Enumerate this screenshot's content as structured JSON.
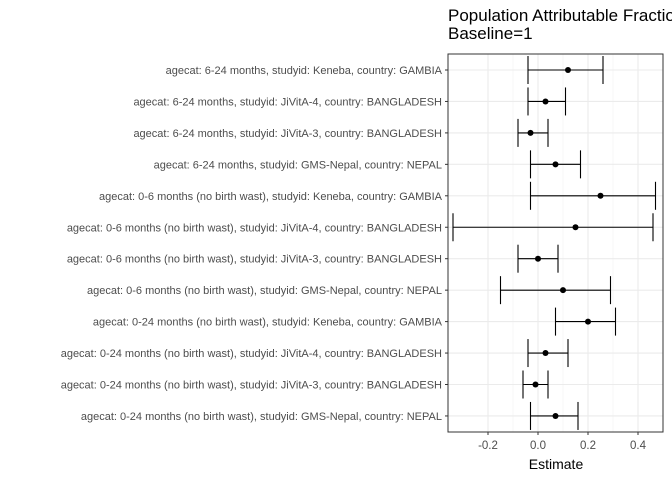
{
  "chart_data": {
    "type": "forest",
    "title": "Population Attributable Fraction",
    "subtitle": "Baseline=1",
    "xlabel": "Estimate",
    "ylabel": "",
    "xlim": [
      -0.36,
      0.5
    ],
    "x_ticks": [
      -0.2,
      0.0,
      0.2,
      0.4
    ],
    "x_tick_labels": [
      "-0.2",
      "0.0",
      "0.2",
      "0.4"
    ],
    "grid": true,
    "rows": [
      {
        "label": "agecat: 6-24 months, studyid: Keneba, country: GAMBIA",
        "estimate": 0.12,
        "lower": -0.04,
        "upper": 0.26
      },
      {
        "label": "agecat: 6-24 months, studyid: JiVitA-4, country: BANGLADESH",
        "estimate": 0.03,
        "lower": -0.04,
        "upper": 0.11
      },
      {
        "label": "agecat: 6-24 months, studyid: JiVitA-3, country: BANGLADESH",
        "estimate": -0.03,
        "lower": -0.08,
        "upper": 0.04
      },
      {
        "label": "agecat: 6-24 months, studyid: GMS-Nepal, country: NEPAL",
        "estimate": 0.07,
        "lower": -0.03,
        "upper": 0.17
      },
      {
        "label": "agecat: 0-6 months (no birth wast), studyid: Keneba, country: GAMBIA",
        "estimate": 0.25,
        "lower": -0.03,
        "upper": 0.47
      },
      {
        "label": "agecat: 0-6 months (no birth wast), studyid: JiVitA-4, country: BANGLADESH",
        "estimate": 0.15,
        "lower": -0.34,
        "upper": 0.46
      },
      {
        "label": "agecat: 0-6 months (no birth wast), studyid: JiVitA-3, country: BANGLADESH",
        "estimate": 0.0,
        "lower": -0.08,
        "upper": 0.08
      },
      {
        "label": "agecat: 0-6 months (no birth wast), studyid: GMS-Nepal, country: NEPAL",
        "estimate": 0.1,
        "lower": -0.15,
        "upper": 0.29
      },
      {
        "label": "agecat: 0-24 months (no birth wast), studyid: Keneba, country: GAMBIA",
        "estimate": 0.2,
        "lower": 0.07,
        "upper": 0.31
      },
      {
        "label": "agecat: 0-24 months (no birth wast), studyid: JiVitA-4, country: BANGLADESH",
        "estimate": 0.03,
        "lower": -0.04,
        "upper": 0.12
      },
      {
        "label": "agecat: 0-24 months (no birth wast), studyid: JiVitA-3, country: BANGLADESH",
        "estimate": -0.01,
        "lower": -0.06,
        "upper": 0.04
      },
      {
        "label": "agecat: 0-24 months (no birth wast), studyid: GMS-Nepal, country: NEPAL",
        "estimate": 0.07,
        "lower": -0.03,
        "upper": 0.16
      }
    ]
  }
}
